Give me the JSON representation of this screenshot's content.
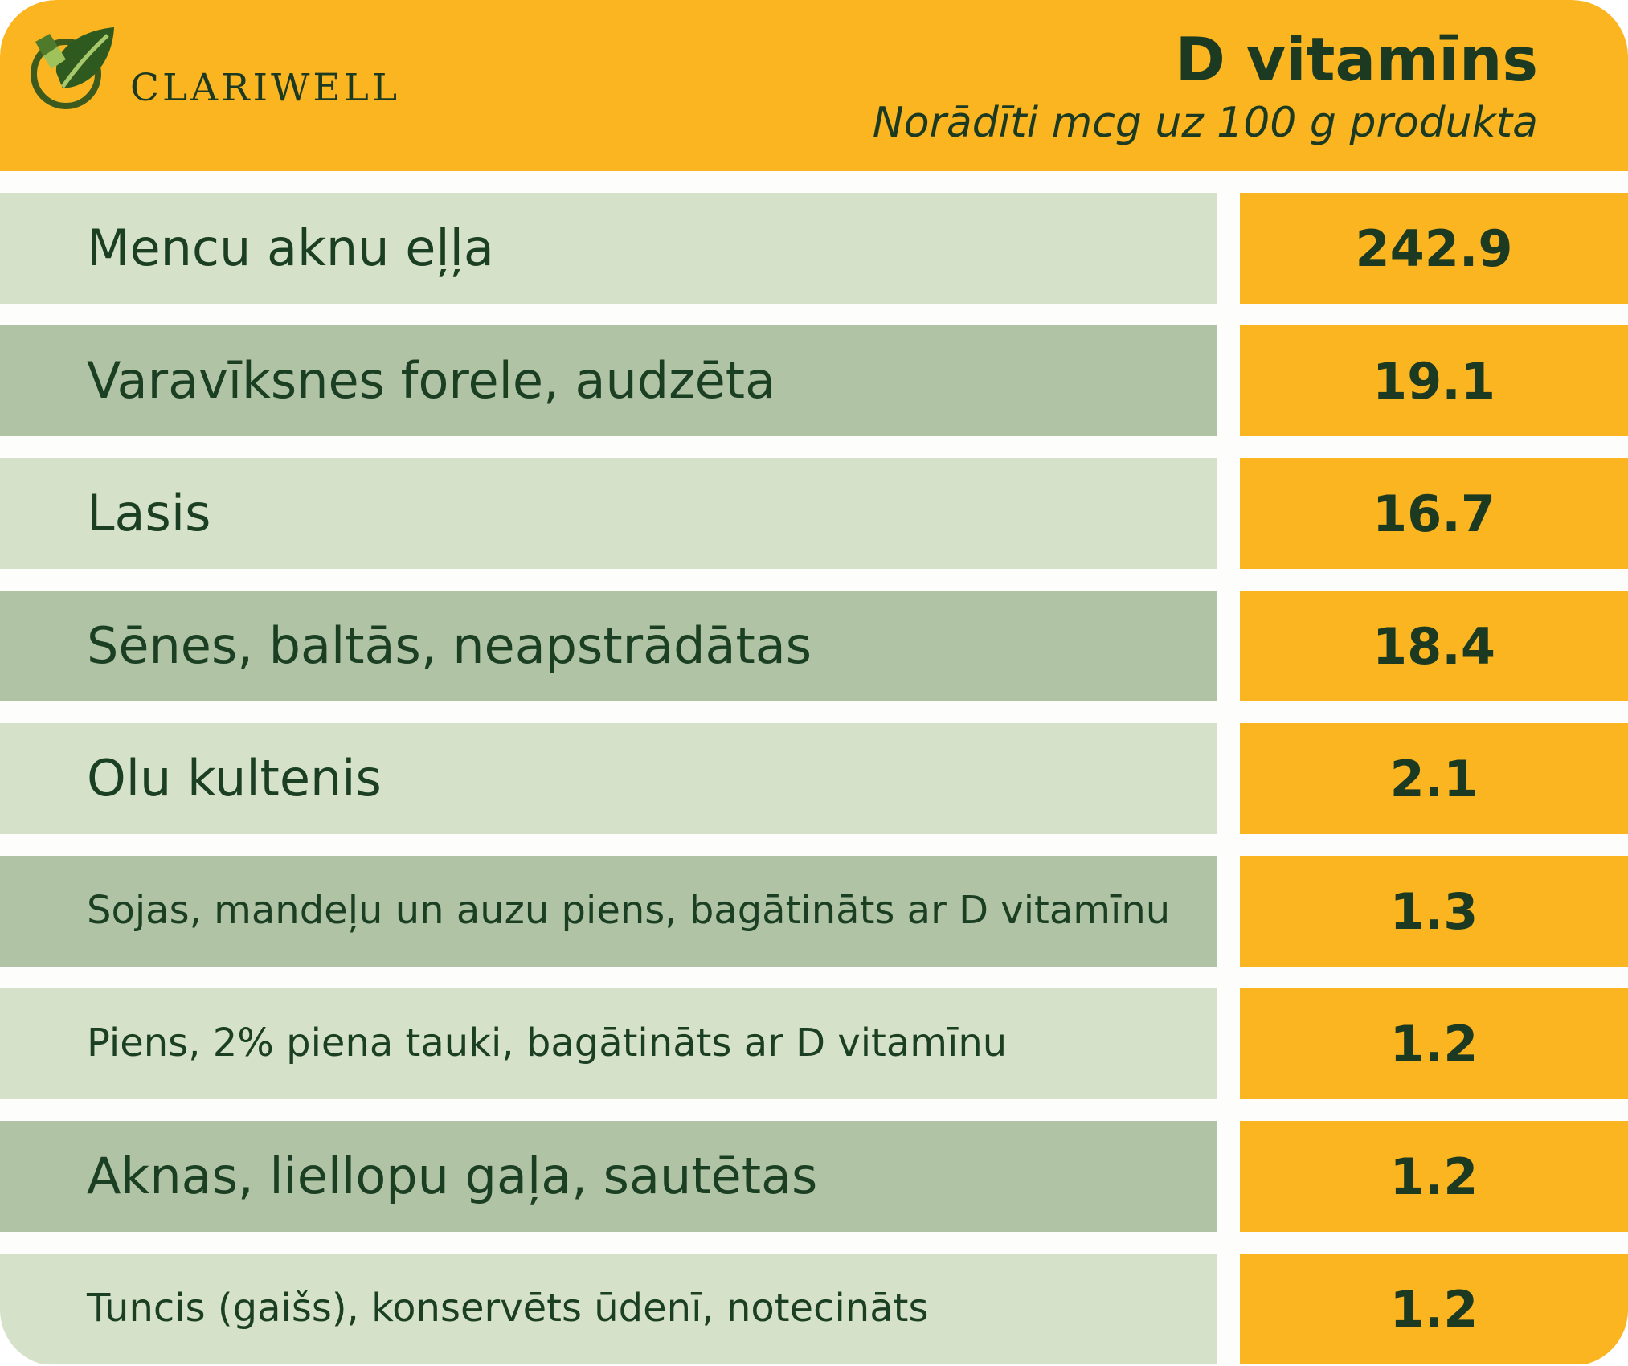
{
  "brand": {
    "name": "CLARIWELL",
    "logo_icon": "leaf-logo-icon"
  },
  "header": {
    "title": "D vitamīns",
    "subtitle": "Norādīti mcg uz 100 g produkta"
  },
  "colors": {
    "accent": "#fbb520",
    "row_light": "#d6e1c9",
    "row_dark": "#b0c3a4",
    "text": "#1c3a22"
  },
  "rows": [
    {
      "name": "Mencu aknu eļļa",
      "value": "242.9"
    },
    {
      "name": "Varavīksnes forele, audzēta",
      "value": "19.1"
    },
    {
      "name": "Lasis",
      "value": "16.7"
    },
    {
      "name": "Sēnes, baltās, neapstrādātas",
      "value": "18.4"
    },
    {
      "name": "Olu kultenis",
      "value": "2.1"
    },
    {
      "name": "Sojas, mandeļu un auzu piens, bagātināts ar D vitamīnu",
      "value": "1.3"
    },
    {
      "name": "Piens, 2% piena tauki, bagātināts ar D vitamīnu",
      "value": "1.2"
    },
    {
      "name": "Aknas, liellopu gaļa, sautētas",
      "value": "1.2"
    },
    {
      "name": "Tuncis (gaišs), konservēts ūdenī, notecināts",
      "value": "1.2"
    }
  ]
}
